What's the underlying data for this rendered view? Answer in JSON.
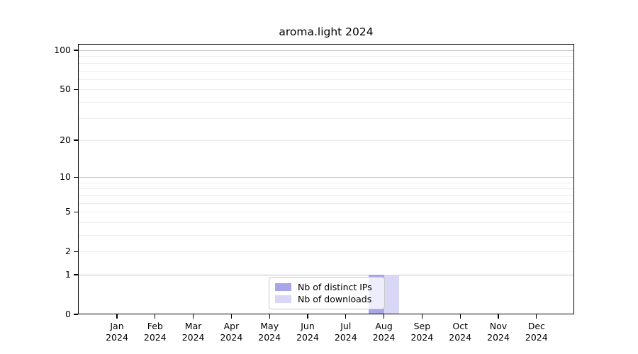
{
  "chart_data": {
    "type": "bar",
    "title": "aroma.light 2024",
    "categories": [
      "Jan",
      "Feb",
      "Mar",
      "Apr",
      "May",
      "Jun",
      "Jul",
      "Aug",
      "Sep",
      "Oct",
      "Nov",
      "Dec"
    ],
    "x_sublabel": "2024",
    "series": [
      {
        "name": "Nb of distinct IPs",
        "color": "#a6a6e9",
        "values": [
          0,
          0,
          0,
          0,
          0,
          0,
          0,
          1,
          0,
          0,
          0,
          0
        ]
      },
      {
        "name": "Nb of downloads",
        "color": "#d8d8f6",
        "values": [
          0,
          0,
          0,
          0,
          0,
          0,
          0,
          1,
          0,
          0,
          0,
          0
        ]
      }
    ],
    "y_ticks": [
      100,
      50,
      20,
      10,
      5,
      2,
      1,
      0
    ],
    "y_scale": "log10(1+y)",
    "ylim": [
      0,
      112
    ],
    "grid": {
      "major_values": [
        1,
        10,
        100
      ],
      "minor_values": [
        2,
        3,
        4,
        5,
        6,
        7,
        8,
        9,
        20,
        30,
        40,
        50,
        60,
        70,
        80,
        90
      ],
      "major_color": "#c3c3c3",
      "minor_color": "#ececec"
    },
    "legend_position": "lower center",
    "axis_color": "#000000"
  }
}
